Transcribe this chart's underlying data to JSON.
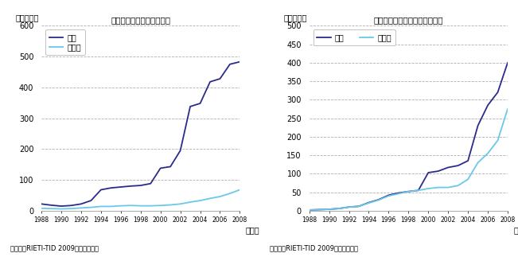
{
  "chart1": {
    "title": "日本から中国への輸出動向",
    "ylabel": "（億ドル）",
    "years": [
      1988,
      1989,
      1990,
      1991,
      1992,
      1993,
      1994,
      1995,
      1996,
      1997,
      1998,
      1999,
      2000,
      2001,
      2002,
      2003,
      2004,
      2005,
      2006,
      2007,
      2008
    ],
    "parts": [
      22,
      18,
      15,
      17,
      22,
      33,
      68,
      74,
      77,
      80,
      82,
      88,
      138,
      143,
      195,
      338,
      348,
      418,
      428,
      475,
      483
    ],
    "consumer": [
      8,
      7,
      6,
      7,
      9,
      11,
      14,
      14,
      16,
      17,
      16,
      16,
      17,
      19,
      22,
      28,
      33,
      40,
      46,
      56,
      68
    ],
    "ylim": [
      0,
      600
    ],
    "yticks": [
      0,
      100,
      200,
      300,
      400,
      500,
      600
    ],
    "source": "資料：『RIETI-TID 2009』から作成。"
  },
  "chart2": {
    "title": "ドイツから中東欧への輸出動向",
    "ylabel": "（億ドル）",
    "years": [
      1988,
      1989,
      1990,
      1991,
      1992,
      1993,
      1994,
      1995,
      1996,
      1997,
      1998,
      1999,
      2000,
      2001,
      2002,
      2003,
      2004,
      2005,
      2006,
      2007,
      2008
    ],
    "parts": [
      2,
      3,
      4,
      6,
      10,
      12,
      22,
      30,
      42,
      48,
      52,
      55,
      103,
      107,
      117,
      122,
      135,
      230,
      285,
      320,
      400
    ],
    "consumer": [
      2,
      3,
      4,
      6,
      10,
      12,
      21,
      29,
      40,
      46,
      52,
      55,
      60,
      63,
      63,
      68,
      85,
      130,
      155,
      190,
      275
    ],
    "ylim": [
      0,
      500
    ],
    "yticks": [
      0,
      50,
      100,
      150,
      200,
      250,
      300,
      350,
      400,
      450,
      500
    ],
    "source": "資料：『RIETI-TID 2009』から作成。"
  },
  "parts_color": "#2b2b8c",
  "consumer_color": "#6ac8e8",
  "legend_parts": "部品",
  "legend_consumer": "消費財",
  "xlabel": "（年）",
  "grid_color": "#b0b0b0",
  "font_size": 7.5
}
